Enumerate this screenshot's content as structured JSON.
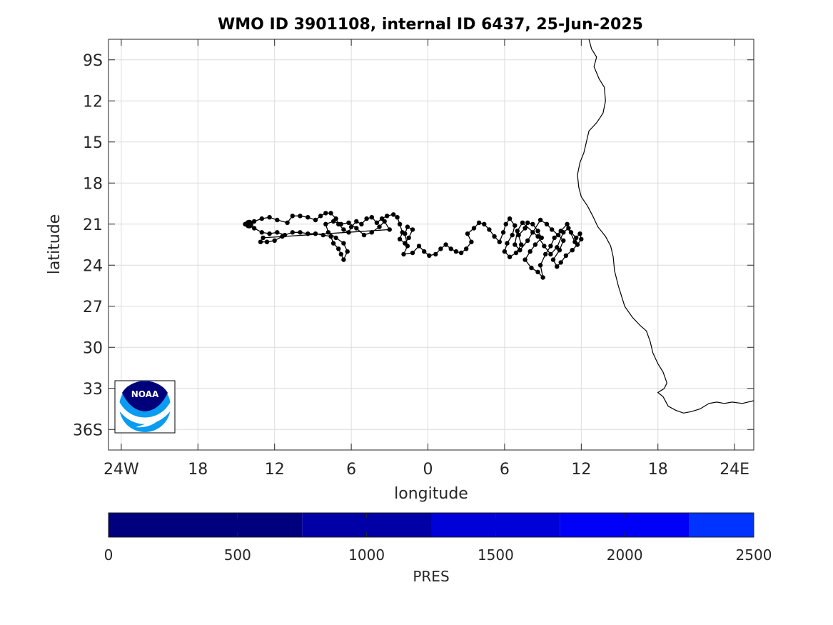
{
  "chart_data": {
    "type": "scatter",
    "title": "WMO ID 3901108, internal ID 6437, 25-Jun-2025",
    "xlabel": "longitude",
    "ylabel": "latitude",
    "xlim": [
      -25,
      25.5
    ],
    "ylim": [
      -37.5,
      -7.5
    ],
    "xticks": [
      -24,
      -18,
      -12,
      -6,
      0,
      6,
      12,
      18,
      24
    ],
    "xtick_labels": [
      "24W",
      "18",
      "12",
      "6",
      "0",
      "6",
      "12",
      "18",
      "24E"
    ],
    "yticks": [
      -9,
      -12,
      -15,
      -18,
      -21,
      -24,
      -27,
      -30,
      -33,
      -36
    ],
    "ytick_labels": [
      "9S",
      "12",
      "15",
      "18",
      "21",
      "24",
      "27",
      "30",
      "33",
      "36S"
    ],
    "grid": true,
    "logo": "noaa-logo",
    "track_color": "#000000",
    "series": [
      {
        "points": [
          [
            -14.0,
            -21.0
          ],
          [
            -13.6,
            -20.8
          ],
          [
            -13.0,
            -20.6
          ],
          [
            -12.4,
            -20.5
          ],
          [
            -11.8,
            -20.7
          ],
          [
            -11.0,
            -20.9
          ],
          [
            -10.6,
            -20.4
          ],
          [
            -10.0,
            -20.4
          ],
          [
            -9.4,
            -20.5
          ],
          [
            -8.8,
            -20.7
          ],
          [
            -8.4,
            -20.4
          ],
          [
            -8.0,
            -20.2
          ],
          [
            -7.6,
            -20.2
          ],
          [
            -7.2,
            -20.6
          ],
          [
            -7.0,
            -21.0
          ],
          [
            -6.6,
            -21.4
          ],
          [
            -6.2,
            -21.6
          ],
          [
            -6.0,
            -21.2
          ],
          [
            -5.6,
            -20.8
          ],
          [
            -5.2,
            -21.0
          ],
          [
            -4.8,
            -20.6
          ],
          [
            -4.4,
            -20.5
          ],
          [
            -4.0,
            -20.9
          ],
          [
            -3.6,
            -20.6
          ],
          [
            -3.2,
            -20.4
          ],
          [
            -2.7,
            -20.3
          ],
          [
            -2.4,
            -20.5
          ],
          [
            -2.2,
            -21.0
          ],
          [
            -2.0,
            -21.6
          ],
          [
            -2.2,
            -22.1
          ],
          [
            -1.8,
            -22.4
          ],
          [
            -1.5,
            -22.0
          ],
          [
            -1.2,
            -21.4
          ],
          [
            -1.6,
            -21.2
          ],
          [
            -1.8,
            -21.7
          ],
          [
            -1.6,
            -22.6
          ],
          [
            -1.9,
            -23.2
          ],
          [
            -1.2,
            -23.1
          ],
          [
            -0.7,
            -22.6
          ],
          [
            -0.3,
            -23.0
          ],
          [
            0.1,
            -23.3
          ],
          [
            0.6,
            -23.2
          ],
          [
            1.0,
            -22.8
          ],
          [
            1.4,
            -22.5
          ],
          [
            1.8,
            -22.8
          ],
          [
            2.2,
            -23.0
          ],
          [
            2.6,
            -23.1
          ],
          [
            3.0,
            -22.8
          ],
          [
            3.4,
            -22.3
          ],
          [
            3.1,
            -21.7
          ],
          [
            3.6,
            -21.3
          ],
          [
            4.0,
            -20.9
          ],
          [
            4.4,
            -21.0
          ],
          [
            4.8,
            -21.4
          ],
          [
            5.2,
            -21.9
          ],
          [
            5.6,
            -22.3
          ],
          [
            5.9,
            -21.6
          ],
          [
            6.1,
            -21.0
          ],
          [
            6.4,
            -20.6
          ],
          [
            6.8,
            -21.1
          ],
          [
            6.6,
            -21.8
          ],
          [
            6.2,
            -22.4
          ],
          [
            6.0,
            -23.0
          ],
          [
            6.4,
            -23.4
          ],
          [
            6.9,
            -23.1
          ],
          [
            7.3,
            -22.5
          ],
          [
            7.1,
            -21.8
          ],
          [
            7.6,
            -21.3
          ],
          [
            7.8,
            -20.9
          ],
          [
            8.2,
            -21.0
          ],
          [
            8.6,
            -21.5
          ],
          [
            8.9,
            -22.0
          ],
          [
            8.4,
            -22.5
          ],
          [
            8.0,
            -23.0
          ],
          [
            7.6,
            -23.6
          ],
          [
            8.1,
            -24.2
          ],
          [
            8.6,
            -24.5
          ],
          [
            9.0,
            -24.9
          ],
          [
            8.8,
            -24.0
          ],
          [
            9.2,
            -23.2
          ],
          [
            9.6,
            -22.6
          ],
          [
            9.9,
            -22.0
          ],
          [
            10.4,
            -21.5
          ],
          [
            10.9,
            -21.0
          ],
          [
            11.2,
            -21.6
          ],
          [
            11.6,
            -22.0
          ],
          [
            11.9,
            -21.7
          ],
          [
            12.0,
            -22.1
          ],
          [
            11.7,
            -22.5
          ],
          [
            11.3,
            -22.9
          ],
          [
            10.8,
            -23.3
          ],
          [
            10.4,
            -23.8
          ],
          [
            10.1,
            -24.1
          ],
          [
            9.8,
            -23.6
          ],
          [
            10.3,
            -22.9
          ],
          [
            10.6,
            -22.2
          ],
          [
            10.2,
            -21.8
          ],
          [
            9.7,
            -21.4
          ],
          [
            9.3,
            -21.0
          ],
          [
            8.8,
            -20.7
          ],
          [
            8.2,
            -21.6
          ],
          [
            7.8,
            -22.2
          ],
          [
            7.2,
            -22.9
          ],
          [
            6.8,
            -22.5
          ],
          [
            7.0,
            -21.5
          ],
          [
            7.4,
            -20.9
          ],
          [
            8.6,
            -21.9
          ],
          [
            9.1,
            -22.6
          ],
          [
            9.6,
            -23.2
          ],
          [
            10.1,
            -22.7
          ],
          [
            10.6,
            -21.6
          ],
          [
            11.0,
            -21.3
          ],
          [
            11.5,
            -22.3
          ]
        ]
      },
      {
        "points": [
          [
            -14.3,
            -21.0
          ],
          [
            -13.6,
            -21.3
          ],
          [
            -13.0,
            -21.6
          ],
          [
            -12.4,
            -21.7
          ],
          [
            -11.8,
            -21.6
          ],
          [
            -11.2,
            -21.8
          ],
          [
            -10.6,
            -21.6
          ],
          [
            -10.0,
            -21.6
          ],
          [
            -9.4,
            -21.7
          ],
          [
            -8.8,
            -21.7
          ],
          [
            -8.2,
            -21.8
          ],
          [
            -7.6,
            -21.9
          ],
          [
            -7.4,
            -22.4
          ],
          [
            -7.0,
            -22.8
          ],
          [
            -6.8,
            -23.2
          ],
          [
            -6.6,
            -23.6
          ],
          [
            -6.3,
            -23.0
          ],
          [
            -6.6,
            -22.4
          ],
          [
            -7.2,
            -22.0
          ],
          [
            -7.8,
            -21.6
          ],
          [
            -8.0,
            -21.0
          ],
          [
            -7.4,
            -20.8
          ],
          [
            -6.8,
            -21.0
          ],
          [
            -6.2,
            -20.9
          ],
          [
            -5.6,
            -21.3
          ],
          [
            -5.0,
            -21.8
          ],
          [
            -4.4,
            -21.6
          ],
          [
            -3.8,
            -21.2
          ],
          [
            -3.4,
            -20.8
          ],
          [
            -3.0,
            -21.4
          ],
          [
            -12.9,
            -22.0
          ],
          [
            -13.1,
            -22.3
          ],
          [
            -12.6,
            -22.3
          ],
          [
            -12.0,
            -22.2
          ],
          [
            -11.4,
            -21.9
          ]
        ]
      }
    ],
    "coastline": [
      [
        12.6,
        -7.5
      ],
      [
        12.8,
        -8.2
      ],
      [
        13.2,
        -8.8
      ],
      [
        13.0,
        -9.5
      ],
      [
        13.4,
        -10.4
      ],
      [
        13.8,
        -11.0
      ],
      [
        13.9,
        -12.0
      ],
      [
        13.7,
        -12.9
      ],
      [
        13.2,
        -13.6
      ],
      [
        12.6,
        -14.2
      ],
      [
        12.4,
        -15.0
      ],
      [
        12.2,
        -15.8
      ],
      [
        11.9,
        -16.5
      ],
      [
        11.7,
        -17.4
      ],
      [
        11.8,
        -18.3
      ],
      [
        12.0,
        -19.0
      ],
      [
        12.5,
        -19.7
      ],
      [
        12.9,
        -20.4
      ],
      [
        13.3,
        -21.2
      ],
      [
        13.9,
        -21.9
      ],
      [
        14.3,
        -22.6
      ],
      [
        14.5,
        -23.4
      ],
      [
        14.6,
        -24.4
      ],
      [
        14.9,
        -25.5
      ],
      [
        15.2,
        -26.4
      ],
      [
        15.4,
        -27.0
      ],
      [
        16.0,
        -27.8
      ],
      [
        16.6,
        -28.4
      ],
      [
        17.1,
        -28.8
      ],
      [
        17.4,
        -29.6
      ],
      [
        17.6,
        -30.4
      ],
      [
        18.0,
        -31.2
      ],
      [
        18.4,
        -31.8
      ],
      [
        18.7,
        -32.6
      ],
      [
        18.5,
        -33.0
      ],
      [
        18.0,
        -33.3
      ],
      [
        18.4,
        -33.6
      ],
      [
        18.8,
        -34.3
      ],
      [
        19.4,
        -34.6
      ],
      [
        20.0,
        -34.8
      ],
      [
        20.6,
        -34.7
      ],
      [
        21.3,
        -34.5
      ],
      [
        22.0,
        -34.1
      ],
      [
        22.6,
        -34.0
      ],
      [
        23.2,
        -34.1
      ],
      [
        23.8,
        -34.0
      ],
      [
        24.6,
        -34.1
      ],
      [
        25.5,
        -33.9
      ]
    ]
  },
  "colorbar": {
    "label": "PRES",
    "range": [
      0,
      2500
    ],
    "ticks": [
      0,
      500,
      1000,
      1500,
      2000,
      2500
    ],
    "tick_labels": [
      "0",
      "500",
      "1000",
      "1500",
      "2000",
      "2500"
    ],
    "segments": [
      {
        "from": 0,
        "to": 750,
        "color": "#00007f"
      },
      {
        "from": 750,
        "to": 1250,
        "color": "#0000a6"
      },
      {
        "from": 1250,
        "to": 1750,
        "color": "#0000d8"
      },
      {
        "from": 1750,
        "to": 2250,
        "color": "#0000f9"
      },
      {
        "from": 2250,
        "to": 2500,
        "color": "#0033ff"
      }
    ]
  },
  "logo": {
    "text": "NOAA",
    "colors": {
      "dark": "#00007a",
      "light": "#0a9cf0"
    }
  }
}
